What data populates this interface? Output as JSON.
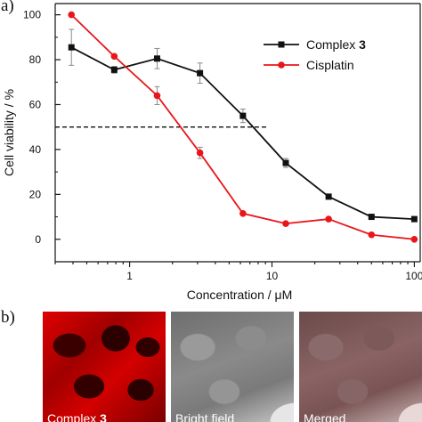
{
  "panel_a_label": "a)",
  "panel_b_label": "b)",
  "chart_data": {
    "type": "line",
    "title": "",
    "xlabel": "Concentration / μM",
    "ylabel": "Cell viability / %",
    "xscale": "log",
    "xlim": [
      0.3,
      110
    ],
    "ylim": [
      -10,
      105
    ],
    "xticks": [
      1,
      10,
      100
    ],
    "xtick_labels": [
      "1",
      "10",
      "100"
    ],
    "yticks": [
      0,
      20,
      40,
      60,
      80,
      100
    ],
    "ytick_labels": [
      "0",
      "20",
      "40",
      "60",
      "80",
      "100"
    ],
    "grid": false,
    "legend_position": "top-right",
    "reference_line": {
      "y": 50,
      "x_from": 0.3,
      "x_to": 9.5,
      "style": "dashed"
    },
    "series": [
      {
        "name": "Complex 3",
        "color": "#111111",
        "marker": "square",
        "x": [
          0.39,
          0.78,
          1.56,
          3.12,
          6.25,
          12.5,
          25,
          50,
          100
        ],
        "y": [
          85.5,
          75.5,
          80.5,
          74,
          55,
          34,
          19,
          10,
          9
        ],
        "error": [
          8,
          1.5,
          4.5,
          4.5,
          3,
          2,
          1,
          0.5,
          0.5
        ]
      },
      {
        "name": "Cisplatin",
        "color": "#e8161b",
        "marker": "circle",
        "x": [
          0.39,
          0.78,
          1.56,
          3.12,
          6.25,
          12.5,
          25,
          50,
          100
        ],
        "y": [
          100,
          81.5,
          64,
          38.5,
          11.5,
          7,
          9,
          2,
          0
        ],
        "error": [
          0,
          0,
          4,
          2.5,
          0,
          0,
          0,
          0,
          0
        ]
      }
    ]
  },
  "micrographs": [
    {
      "id": "micro-red",
      "caption": "Complex ",
      "caption_bold": "3"
    },
    {
      "id": "micro-bright",
      "caption": "Bright field",
      "caption_bold": ""
    },
    {
      "id": "micro-merged",
      "caption": "Merged",
      "caption_bold": ""
    }
  ],
  "colors": {
    "axis": "#111111",
    "complex3": "#111111",
    "cisplatin": "#e8161b",
    "errorbar": "#8a8a8a"
  }
}
